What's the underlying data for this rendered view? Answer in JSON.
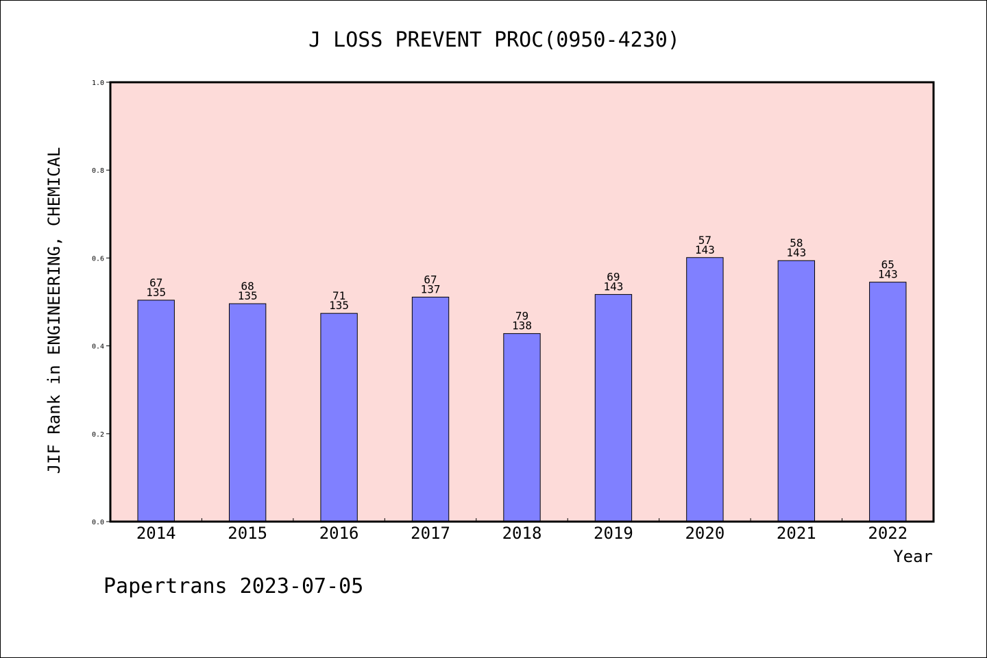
{
  "chart_data": {
    "type": "bar",
    "title": "J LOSS PREVENT PROC(0950-4230)",
    "xlabel": "Year",
    "ylabel": "JIF Rank in ENGINEERING, CHEMICAL",
    "ylim": [
      0,
      1.0
    ],
    "yticks": [
      "0.0",
      "0.2",
      "0.4",
      "0.6",
      "0.8",
      "1.0"
    ],
    "grid": false,
    "legend": "none",
    "categories": [
      "2014",
      "2015",
      "2016",
      "2017",
      "2018",
      "2019",
      "2020",
      "2021",
      "2022"
    ],
    "values": [
      0.504,
      0.496,
      0.474,
      0.511,
      0.428,
      0.517,
      0.601,
      0.594,
      0.545
    ],
    "rank": [
      "67",
      "68",
      "71",
      "67",
      "79",
      "69",
      "57",
      "58",
      "65"
    ],
    "total": [
      "135",
      "135",
      "135",
      "137",
      "138",
      "143",
      "143",
      "143",
      "143"
    ]
  },
  "footer": "Papertrans 2023-07-05",
  "colors": {
    "plot_background": "#fddbd9",
    "bar_fill": "#8080ff",
    "bar_stroke": "#000000"
  }
}
